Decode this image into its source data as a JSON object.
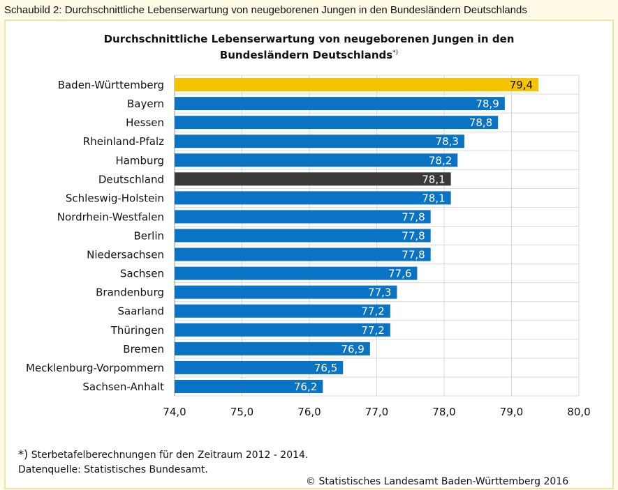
{
  "caption": "Schaubild 2: Durchschnittliche Lebenserwartung von neugeborenen Jungen in den Bundesländern Deutschlands",
  "title_line1": "Durchschnittliche Lebenserwartung von neugeborenen Jungen in den",
  "title_line2": "Bundesländern Deutschlands",
  "title_mark": "*)",
  "footnote_mark": "*)",
  "footnote": " Sterbetafelberechnungen für den Zeitraum 2012 - 2014.",
  "source": "Datenquelle: Statistisches Bundesamt.",
  "copyright": "© Statistisches Landesamt Baden-Württemberg 2016",
  "colors": {
    "highlight": "#f5c300",
    "national": "#3a3a3a",
    "default": "#0a73c4",
    "grid": "#d9d9d9"
  },
  "chart_data": {
    "type": "bar",
    "orientation": "horizontal",
    "categories": [
      "Baden-Württemberg",
      "Bayern",
      "Hessen",
      "Rheinland-Pfalz",
      "Hamburg",
      "Deutschland",
      "Schleswig-Holstein",
      "Nordrhein-Westfalen",
      "Berlin",
      "Niedersachsen",
      "Sachsen",
      "Brandenburg",
      "Saarland",
      "Thüringen",
      "Bremen",
      "Mecklenburg-Vorpommern",
      "Sachsen-Anhalt"
    ],
    "values": [
      79.4,
      78.9,
      78.8,
      78.3,
      78.2,
      78.1,
      78.1,
      77.8,
      77.8,
      77.8,
      77.6,
      77.3,
      77.2,
      77.2,
      76.9,
      76.5,
      76.2
    ],
    "value_labels": [
      "79,4",
      "78,9",
      "78,8",
      "78,3",
      "78,2",
      "78,1",
      "78,1",
      "77,8",
      "77,8",
      "77,8",
      "77,6",
      "77,3",
      "77,2",
      "77,2",
      "76,9",
      "76,5",
      "76,2"
    ],
    "xlim": [
      74.0,
      80.0
    ],
    "xticks": [
      74.0,
      75.0,
      76.0,
      77.0,
      78.0,
      79.0,
      80.0
    ],
    "xtick_labels": [
      "74,0",
      "75,0",
      "76,0",
      "77,0",
      "78,0",
      "79,0",
      "80,0"
    ],
    "highlight_category": "Baden-Württemberg",
    "national_category": "Deutschland",
    "grid": true
  }
}
